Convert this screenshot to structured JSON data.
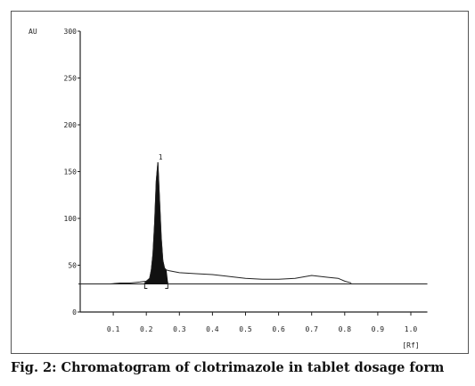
{
  "caption": "Fig. 2: Chromatogram of clotrimazole in tablet dosage form",
  "chart_data": {
    "type": "line",
    "title": "",
    "ylabel": "AU",
    "xlabel": "[Rf]",
    "ylim": [
      0,
      300
    ],
    "xlim": [
      0.0,
      1.05
    ],
    "yticks": [
      0,
      50,
      100,
      150,
      200,
      250,
      300
    ],
    "ytick_labels": [
      "0",
      "50",
      "100",
      "150",
      "200",
      "250",
      "300"
    ],
    "xticks": [
      0.1,
      0.2,
      0.3,
      0.4,
      0.5,
      0.6,
      0.7,
      0.8,
      0.9,
      1.0
    ],
    "xtick_labels": [
      "0.1",
      "0.2",
      "0.3",
      "0.4",
      "0.5",
      "0.6",
      "0.7",
      "0.8",
      "0.9",
      "1.0"
    ],
    "grid": false,
    "baseline": 30,
    "series": [
      {
        "values_x": [
          0.09,
          0.12,
          0.15,
          0.18,
          0.2,
          0.21,
          0.215,
          0.22,
          0.225,
          0.23,
          0.235,
          0.24,
          0.245,
          0.25,
          0.255,
          0.26,
          0.27,
          0.3,
          0.35,
          0.4,
          0.45,
          0.5,
          0.55,
          0.6,
          0.65,
          0.7,
          0.75,
          0.78,
          0.8,
          0.82
        ],
        "values_y": [
          30,
          31,
          31,
          32,
          33,
          36,
          45,
          62,
          95,
          140,
          160,
          120,
          80,
          55,
          47,
          45,
          44,
          42,
          41,
          40,
          38,
          36,
          35,
          35,
          36,
          39,
          37,
          36,
          33,
          31
        ]
      }
    ],
    "peaks": [
      {
        "label": "1",
        "rf": 0.235,
        "height": 160,
        "integration_start": 0.195,
        "integration_end": 0.265
      }
    ]
  }
}
